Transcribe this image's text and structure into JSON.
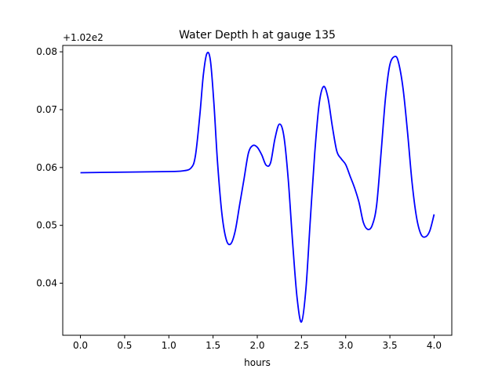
{
  "chart_data": {
    "type": "line",
    "title": "Water Depth h at gauge 135",
    "xlabel": "hours",
    "ylabel": "",
    "offset_text": "+1.02e2",
    "xlim": [
      -0.2,
      4.2
    ],
    "ylim": [
      0.031,
      0.0811
    ],
    "xticks": [
      0.0,
      0.5,
      1.0,
      1.5,
      2.0,
      2.5,
      3.0,
      3.5,
      4.0
    ],
    "xtick_labels": [
      "0.0",
      "0.5",
      "1.0",
      "1.5",
      "2.0",
      "2.5",
      "3.0",
      "3.5",
      "4.0"
    ],
    "yticks": [
      0.04,
      0.05,
      0.06,
      0.07,
      0.08
    ],
    "ytick_labels": [
      "0.04",
      "0.05",
      "0.06",
      "0.07",
      "0.08"
    ],
    "grid": false,
    "legend": "none",
    "line_color": "#0000ff",
    "series": [
      {
        "x": [
          0.0,
          0.5,
          1.0,
          1.15,
          1.25,
          1.3,
          1.35,
          1.39,
          1.43,
          1.47,
          1.51,
          1.55,
          1.6,
          1.65,
          1.7,
          1.75,
          1.8,
          1.85,
          1.9,
          1.95,
          2.0,
          2.05,
          2.1,
          2.15,
          2.2,
          2.25,
          2.3,
          2.35,
          2.4,
          2.45,
          2.5,
          2.55,
          2.6,
          2.65,
          2.7,
          2.75,
          2.8,
          2.85,
          2.9,
          2.95,
          3.0,
          3.05,
          3.1,
          3.15,
          3.2,
          3.25,
          3.3,
          3.35,
          3.4,
          3.45,
          3.5,
          3.56,
          3.6,
          3.65,
          3.7,
          3.75,
          3.8,
          3.85,
          3.9,
          3.95,
          4.0
        ],
        "y": [
          0.0591,
          0.0592,
          0.0593,
          0.0594,
          0.0599,
          0.062,
          0.069,
          0.076,
          0.0797,
          0.0785,
          0.071,
          0.061,
          0.052,
          0.0475,
          0.0468,
          0.049,
          0.0535,
          0.058,
          0.0625,
          0.0638,
          0.0635,
          0.0622,
          0.0604,
          0.0608,
          0.065,
          0.0675,
          0.0655,
          0.058,
          0.047,
          0.0375,
          0.0333,
          0.039,
          0.051,
          0.0625,
          0.071,
          0.074,
          0.072,
          0.067,
          0.0628,
          0.0615,
          0.0605,
          0.0585,
          0.0565,
          0.054,
          0.0505,
          0.0493,
          0.05,
          0.0535,
          0.0625,
          0.072,
          0.0778,
          0.0792,
          0.078,
          0.0735,
          0.066,
          0.0575,
          0.0515,
          0.0485,
          0.048,
          0.049,
          0.0519
        ]
      }
    ]
  }
}
